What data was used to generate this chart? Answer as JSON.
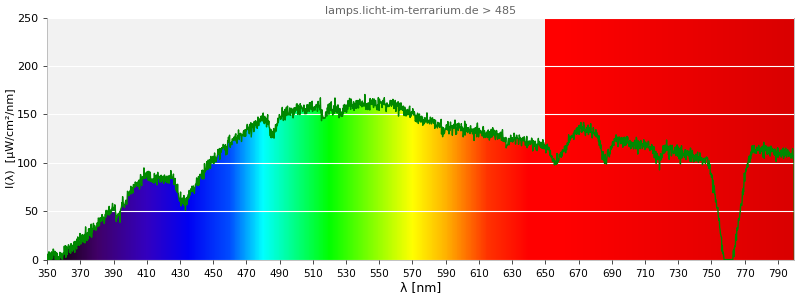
{
  "title": "lamps.licht-im-terrarium.de > 485",
  "title_color": "#666666",
  "xlabel": "λ [nm]",
  "ylabel": "I(λ)  [µW/cm²/nm]",
  "xlim": [
    350,
    800
  ],
  "ylim": [
    0,
    250
  ],
  "xticks": [
    350,
    370,
    390,
    410,
    430,
    450,
    470,
    490,
    510,
    530,
    550,
    570,
    590,
    610,
    630,
    650,
    670,
    690,
    710,
    730,
    750,
    770,
    790
  ],
  "yticks": [
    0,
    50,
    100,
    150,
    200,
    250
  ],
  "background_color": "#ffffff",
  "plot_bg_light": "#ececec",
  "plot_bg_dark": "#e0e0e0",
  "grid_color": "#ffffff",
  "line_color": "#008800",
  "line_width": 1.0,
  "red_region_start": 650,
  "red_color": [
    0.85,
    0.0,
    0.0
  ]
}
